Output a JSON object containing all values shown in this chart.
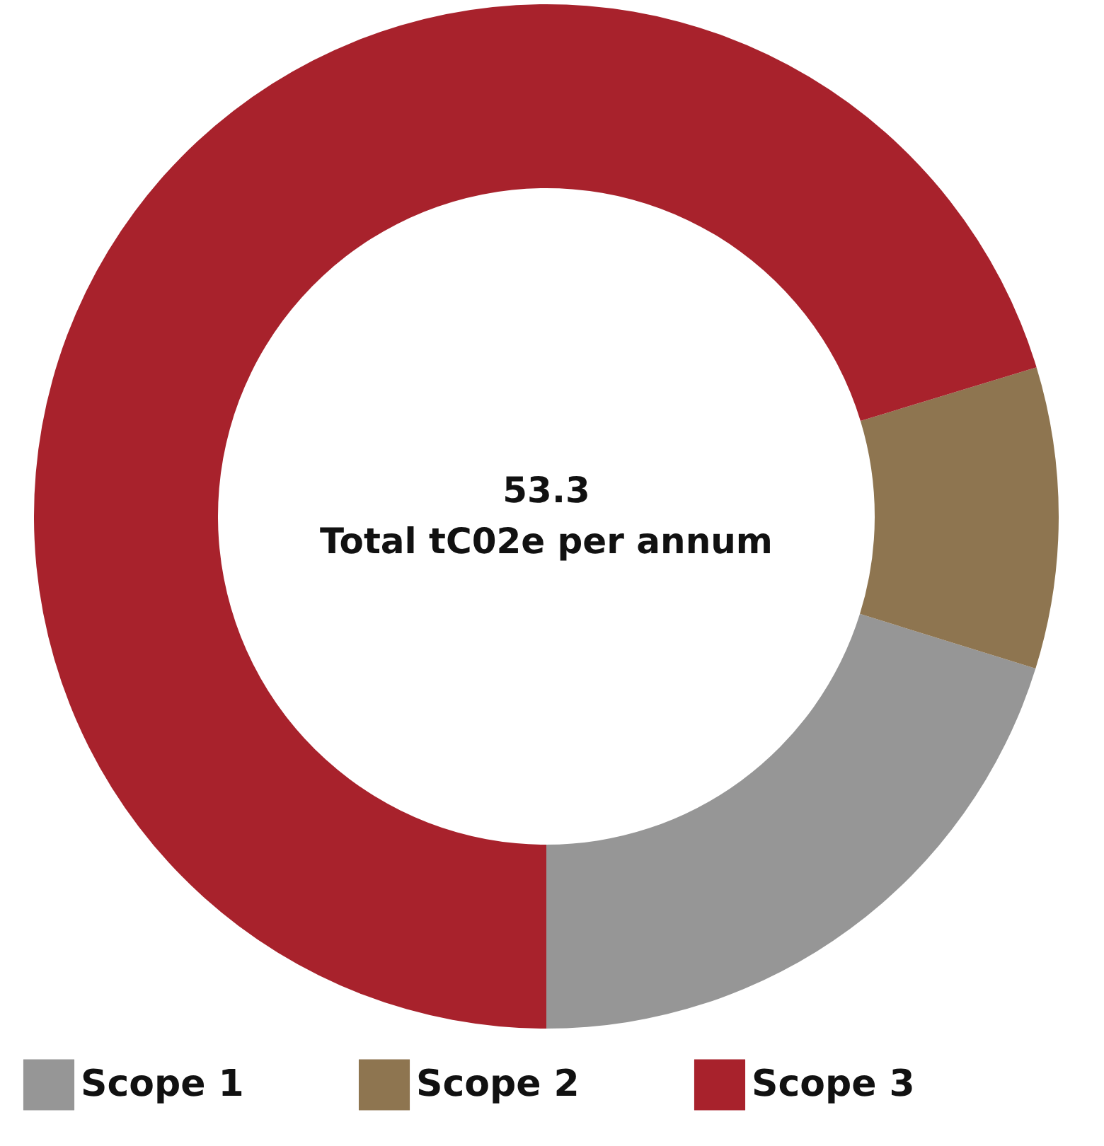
{
  "chart_data": {
    "type": "donut",
    "categories": [
      "Scope 1",
      "Scope 2",
      "Scope 3"
    ],
    "values": [
      20.2,
      9.5,
      70.3
    ],
    "colors": [
      "#969696",
      "#8e7550",
      "#a8222c"
    ],
    "annotations": [
      "53.3",
      "Total tC02e per annum"
    ],
    "legend": "bottom"
  }
}
